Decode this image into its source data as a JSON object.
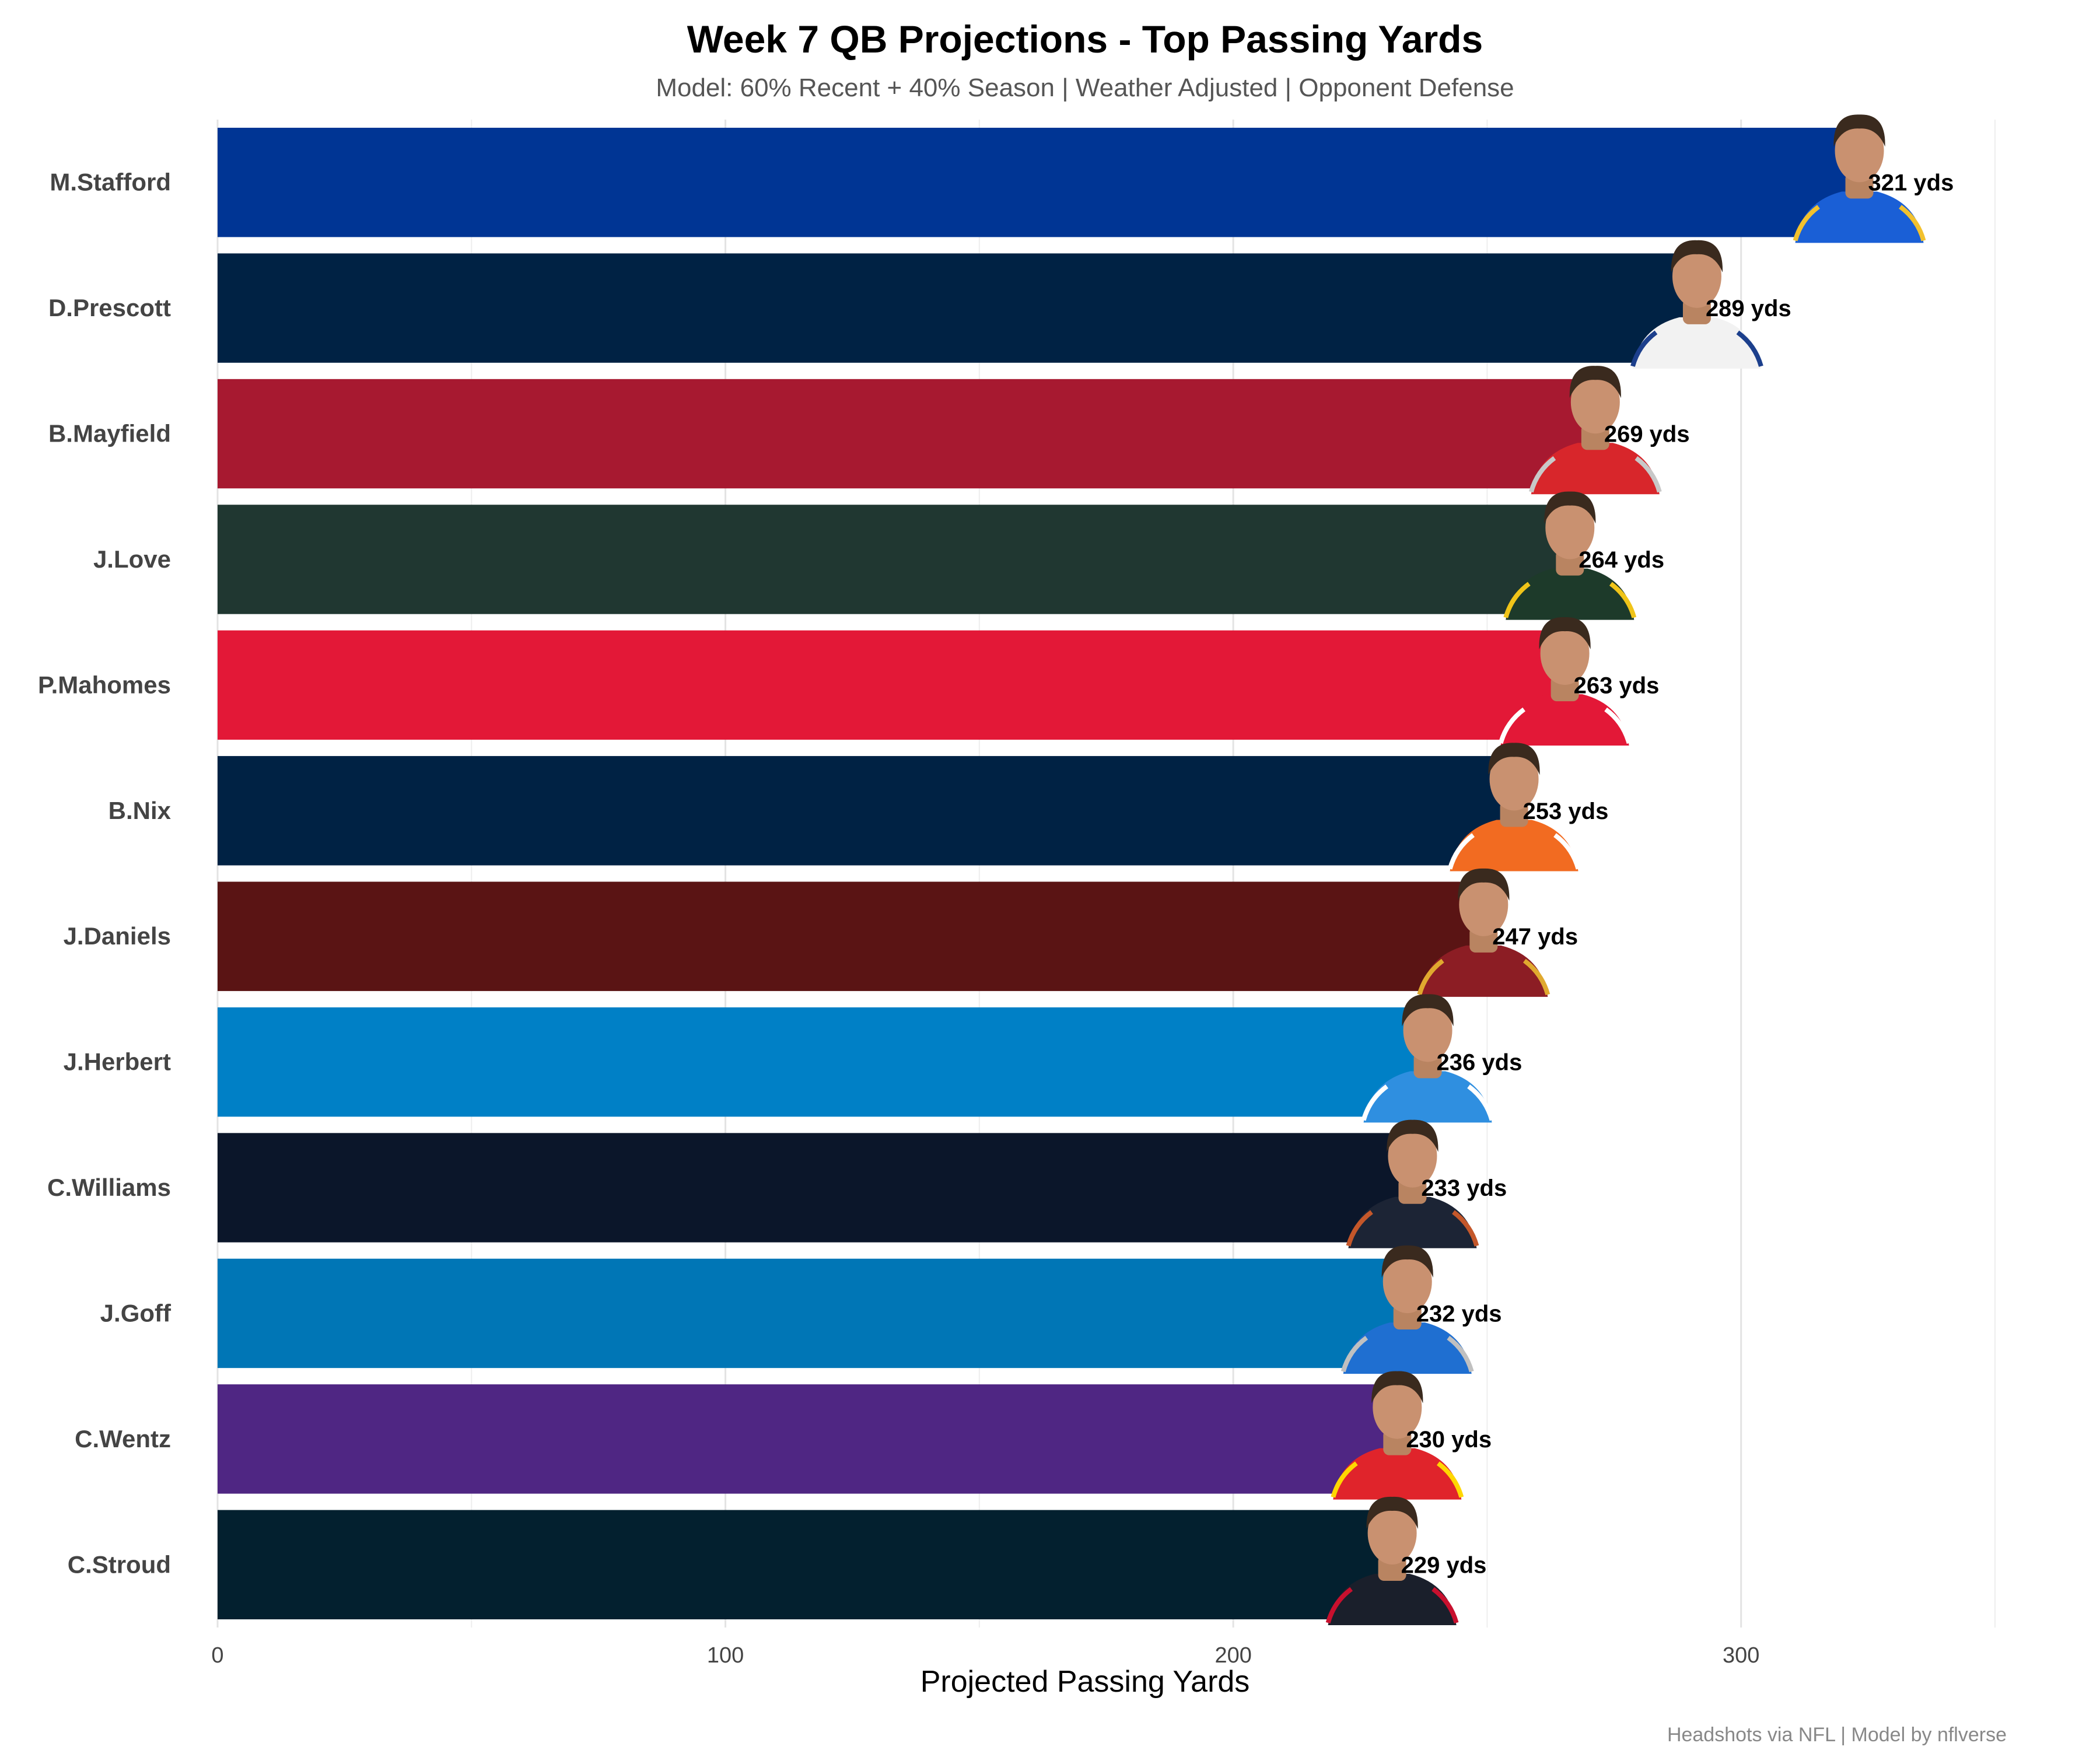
{
  "chart_data": {
    "type": "bar",
    "orientation": "horizontal",
    "title": "Week 7 QB Projections - Top Passing Yards",
    "subtitle": "Model: 60% Recent + 40% Season | Weather Adjusted | Opponent Defense",
    "xlabel": "Projected Passing Yards",
    "ylabel": "",
    "xlim": [
      0,
      350
    ],
    "xticks": [
      "0",
      "100",
      "200",
      "300"
    ],
    "grid": true,
    "value_suffix": " yds",
    "caption": "Headshots via NFL | Model by nflverse",
    "categories": [
      "M.Stafford",
      "D.Prescott",
      "B.Mayfield",
      "J.Love",
      "P.Mahomes",
      "B.Nix",
      "J.Daniels",
      "J.Herbert",
      "C.Williams",
      "J.Goff",
      "C.Wentz",
      "C.Stroud"
    ],
    "values": [
      321,
      289,
      269,
      264,
      263,
      253,
      247,
      236,
      233,
      232,
      230,
      229
    ],
    "value_labels": [
      "321 yds",
      "289 yds",
      "269 yds",
      "264 yds",
      "263 yds",
      "253 yds",
      "247 yds",
      "236 yds",
      "233 yds",
      "232 yds",
      "230 yds",
      "229 yds"
    ],
    "bar_colors": [
      "#003594",
      "#002244",
      "#A71930",
      "#203731",
      "#E31837",
      "#002244",
      "#5A1414",
      "#0080C6",
      "#0B162A",
      "#0076B6",
      "#4F2683",
      "#03202F"
    ],
    "jersey_colors": [
      "#1a5fd6",
      "#f2f2f2",
      "#d8262b",
      "#1d3a2a",
      "#e31837",
      "#f26b21",
      "#8c1d24",
      "#2f8fe0",
      "#1c2435",
      "#1f6fd1",
      "#e0242b",
      "#1a1f2b"
    ],
    "trim_colors": [
      "#f2c12e",
      "#1c3f8c",
      "#c8c8c8",
      "#f0c419",
      "#ffffff",
      "#ffffff",
      "#e0a92f",
      "#ffffff",
      "#c4572a",
      "#c0c0c0",
      "#ffd700",
      "#c8102e"
    ]
  }
}
